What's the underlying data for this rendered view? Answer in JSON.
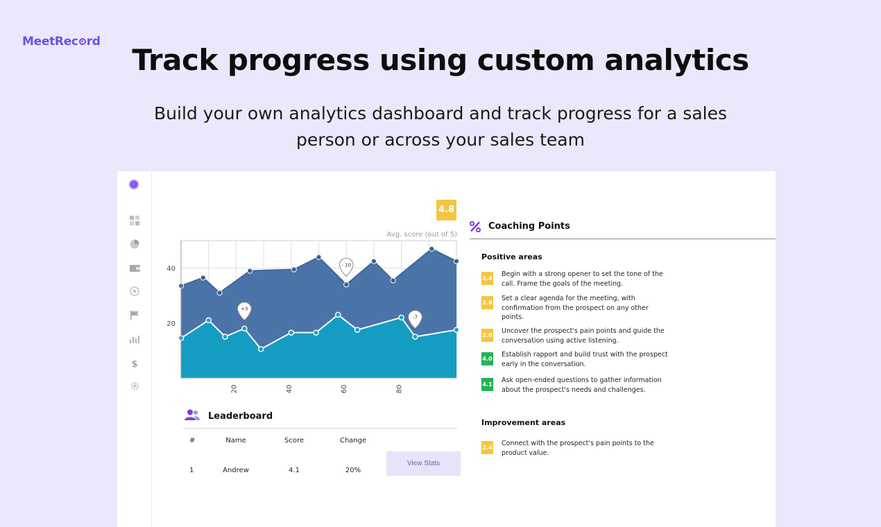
{
  "brand": {
    "name_pre": "MeetRec",
    "name_post": "rd"
  },
  "headline": "Track progress using custom analytics",
  "subline": "Build your own analytics dashboard and track progress for a sales person or across your sales team",
  "colors": {
    "accent": "#6b4fe6",
    "dark_series": "#4a74a8",
    "light_series": "#159cc3",
    "badge_yellow": "#f5c542",
    "badge_green": "#22b35a"
  },
  "sidebar": {
    "icons": [
      "dashboard-icon",
      "pie-chart-icon",
      "wallet-icon",
      "target-icon",
      "flag-icon",
      "bar-chart-icon",
      "dollar-icon",
      "settings-icon"
    ]
  },
  "score": {
    "value": "4.8",
    "label": "Avg. score (out of 5)"
  },
  "chart_data": {
    "type": "area",
    "x": [
      0,
      8,
      14,
      25,
      41,
      50,
      60,
      70,
      77,
      91,
      100
    ],
    "series": [
      {
        "values": [
          33.5,
          36.5,
          31,
          39,
          39.5,
          44,
          34,
          42.5,
          35.5,
          47,
          42.5
        ]
      },
      {
        "values": [
          14.5,
          21,
          15,
          18,
          10.5,
          16.5,
          16.5,
          23,
          17.5,
          22,
          15,
          17.5
        ],
        "x": [
          0,
          10,
          16,
          23,
          29,
          40,
          49,
          57,
          64,
          80,
          85,
          100
        ]
      }
    ],
    "xticks": [
      "20",
      "40",
      "60",
      "80"
    ],
    "xtick_values": [
      20,
      40,
      60,
      80
    ],
    "yticks": [
      "20",
      "40"
    ],
    "ytick_values": [
      20,
      40
    ],
    "xlim": [
      0,
      100
    ],
    "ylim": [
      0,
      50
    ],
    "grid": true,
    "annotations": [
      {
        "text": "+3",
        "x": 23,
        "y": 18
      },
      {
        "text": "- 10",
        "x": 60,
        "y": 34
      },
      {
        "text": "-7",
        "x": 85,
        "y": 15
      }
    ]
  },
  "leaderboard": {
    "title": "Leaderboard",
    "columns": [
      "#",
      "Name",
      "Score",
      "Change"
    ],
    "rows": [
      {
        "rank": "1",
        "name": "Andrew",
        "score": "4.1",
        "change": "20%",
        "action": "View Stats"
      }
    ]
  },
  "coaching": {
    "title": "Coaching Points",
    "icon": "percent-icon",
    "positive_title": "Positive areas",
    "positive": [
      {
        "score": "2.4",
        "level": "yellow",
        "text": "Begin with a strong opener to set the tone of the call. Frame the goals of the meeting."
      },
      {
        "score": "2.6",
        "level": "yellow",
        "text": "Set a clear agenda for the meeting, with confirmation from the prospect on any other points."
      },
      {
        "score": "2.0",
        "level": "yellow",
        "text": "Uncover the prospect's pain points and guide the conversation using active listening."
      },
      {
        "score": "4.0",
        "level": "green",
        "text": "Establish rapport and build trust with the prospect early in the conversation."
      },
      {
        "score": "4.1",
        "level": "green",
        "text": "Ask open-ended questions to gather information about the prospect's needs and challenges."
      }
    ],
    "improvement_title": "Improvement areas",
    "improvement": [
      {
        "score": "2.4",
        "level": "yellow",
        "text": "Connect with the prospect's pain points to the product value."
      }
    ]
  }
}
